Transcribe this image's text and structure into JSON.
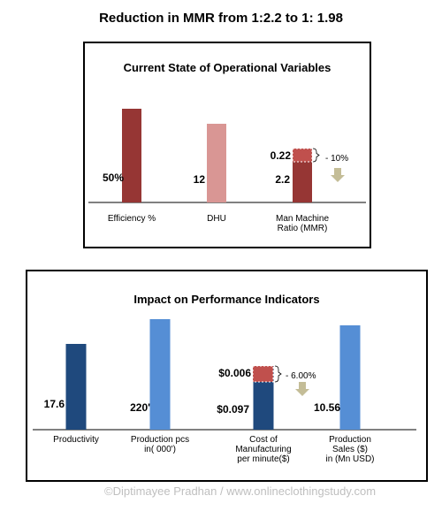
{
  "page": {
    "main_title": "Reduction in MMR from 1:2.2 to 1: 1.98",
    "copyright": "©Diptimayee Pradhan / www.onlineclothingstudy.com"
  },
  "chart_data": [
    {
      "type": "bar",
      "title": "Current State of Operational Variables",
      "categories": [
        "Efficiency %",
        "DHU",
        "Man Machine Ratio (MMR)"
      ],
      "category_labels": [
        [
          "Efficiency %"
        ],
        [
          "DHU"
        ],
        [
          "Man Machine",
          "Ratio  (MMR)"
        ]
      ],
      "values": [
        50,
        12,
        2.2
      ],
      "value_labels": [
        "50%",
        "12",
        "2.2"
      ],
      "colors": [
        "#963634",
        "#d99694",
        "#963634"
      ],
      "annotation": {
        "category_index": 2,
        "segment_value": 0.22,
        "segment_label": "0.22",
        "segment_color": "#c0504d",
        "change_label": "- 10%",
        "arrow": "down",
        "arrow_color": "#c4bd97"
      }
    },
    {
      "type": "bar",
      "title": "Impact on Performance Indicators",
      "categories": [
        "Productivity",
        "Production pcs in( 000')",
        "Cost of Manufacturing per minute($)",
        "Production Sales ($) in (Mn USD)"
      ],
      "category_labels": [
        [
          "Productivity"
        ],
        [
          "Production pcs",
          "in( 000')"
        ],
        [
          "Cost of",
          "Manufacturing",
          "per minute($)"
        ],
        [
          "Production",
          "Sales ($)",
          "in (Mn USD)"
        ]
      ],
      "values": [
        17.6,
        220,
        0.097,
        10.56
      ],
      "value_labels": [
        "17.6",
        "220'",
        "$0.097",
        "10.56"
      ],
      "colors": [
        "#1f497d",
        "#558ed5",
        "#1f497d",
        "#558ed5"
      ],
      "annotation": {
        "category_index": 2,
        "segment_value": 0.006,
        "segment_label": "$0.006",
        "segment_color": "#c0504d",
        "change_label": "- 6.00%",
        "arrow": "down",
        "arrow_color": "#c4bd97"
      }
    }
  ]
}
